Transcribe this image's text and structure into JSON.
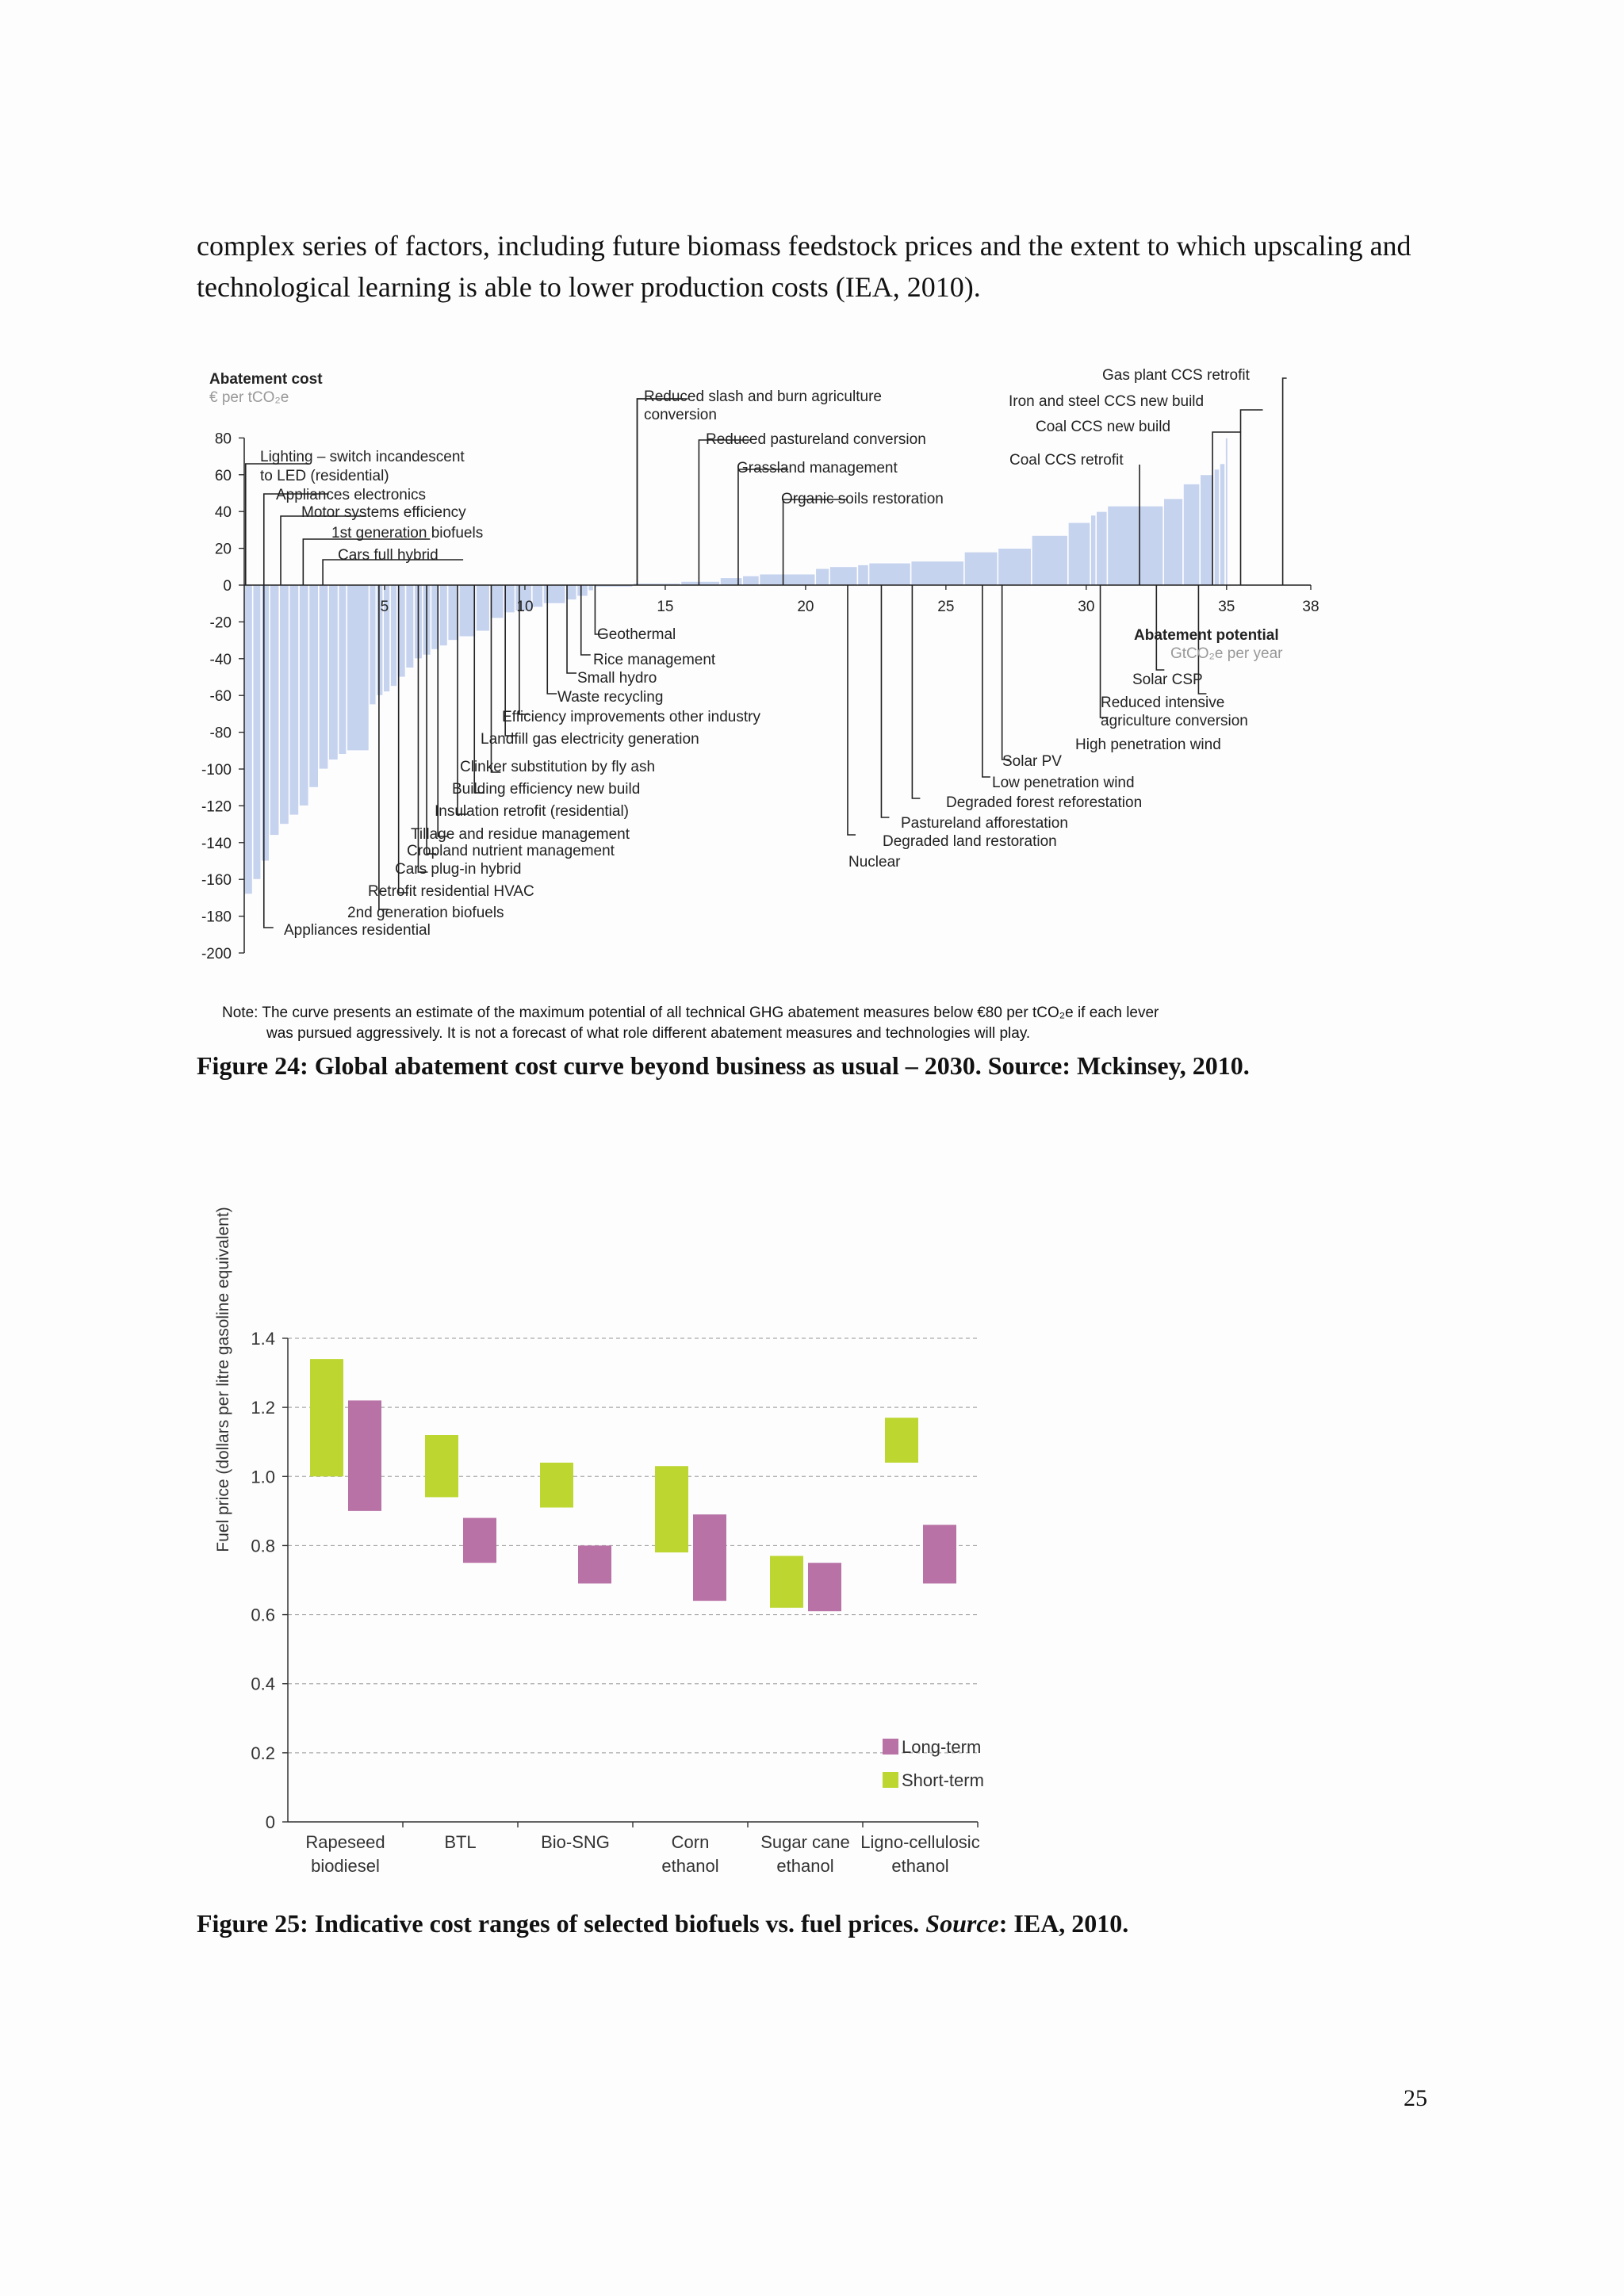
{
  "body_text": "complex series of factors, including future biomass feedstock prices and the extent to which upscaling and technological learning is able to lower production costs (IEA, 2010).",
  "figure24": {
    "caption": "Figure 24: Global abatement cost curve beyond business as usual – 2030. Source: Mckinsey, 2010.",
    "y_title": "Abatement cost",
    "y_unit": "€ per tCO₂e",
    "x_title": "Abatement potential",
    "x_unit": "GtCO₂e per year",
    "note_line1": "Note: The curve presents an estimate of the maximum potential of all technical GHG abatement measures below €80 per tCO₂e if each lever",
    "note_line2": "was pursued aggressively. It is not a forecast of what role different abatement measures and technologies will play.",
    "labels_top": [
      "Lighting – switch incandescent",
      "to LED (residential)",
      "Appliances electronics",
      "Motor systems efficiency",
      "1st generation biofuels",
      "Cars full hybrid",
      "Reduced slash and burn agriculture",
      "conversion",
      "Reduced pastureland conversion",
      "Grassland management",
      "Organic soils restoration",
      "Gas plant CCS retrofit",
      "Iron and steel CCS new build",
      "Coal CCS new build",
      "Coal CCS retrofit"
    ],
    "labels_bottom": [
      "Geothermal",
      "Rice management",
      "Small hydro",
      "Waste recycling",
      "Efficiency improvements other industry",
      "Landfill gas electricity generation",
      "Clinker substitution by fly ash",
      "Building efficiency new build",
      "Insulation retrofit (residential)",
      "Tillage and residue management",
      "Cropland nutrient management",
      "Cars plug-in hybrid",
      "Retrofit residential HVAC",
      "2nd generation biofuels",
      "Appliances residential",
      "Solar CSP",
      "Reduced intensive",
      "agriculture conversion",
      "High penetration wind",
      "Solar PV",
      "Low penetration wind",
      "Degraded forest reforestation",
      "Pastureland afforestation",
      "Degraded land restoration",
      "Nuclear"
    ],
    "chart_data": {
      "type": "bar",
      "xlim": [
        0,
        38
      ],
      "ylim": [
        -200,
        80
      ],
      "x_ticks": [
        5,
        10,
        15,
        20,
        25,
        30,
        35,
        38
      ],
      "y_ticks": [
        80,
        60,
        40,
        20,
        0,
        -20,
        -40,
        -60,
        -80,
        -100,
        -120,
        -140,
        -160,
        -180,
        -200
      ],
      "bar_color": "#c6d3ee",
      "segments": [
        {
          "w": 0.3,
          "v": -168
        },
        {
          "w": 0.3,
          "v": -160
        },
        {
          "w": 0.3,
          "v": -150
        },
        {
          "w": 0.35,
          "v": -136
        },
        {
          "w": 0.35,
          "v": -130
        },
        {
          "w": 0.35,
          "v": -125
        },
        {
          "w": 0.35,
          "v": -120
        },
        {
          "w": 0.35,
          "v": -110
        },
        {
          "w": 0.35,
          "v": -100
        },
        {
          "w": 0.35,
          "v": -95
        },
        {
          "w": 0.3,
          "v": -92
        },
        {
          "w": 0.8,
          "v": -90
        },
        {
          "w": 0.25,
          "v": -65
        },
        {
          "w": 0.25,
          "v": -60
        },
        {
          "w": 0.25,
          "v": -58
        },
        {
          "w": 0.25,
          "v": -55
        },
        {
          "w": 0.3,
          "v": -50
        },
        {
          "w": 0.3,
          "v": -45
        },
        {
          "w": 0.3,
          "v": -40
        },
        {
          "w": 0.3,
          "v": -38
        },
        {
          "w": 0.3,
          "v": -35
        },
        {
          "w": 0.3,
          "v": -33
        },
        {
          "w": 0.4,
          "v": -30
        },
        {
          "w": 0.6,
          "v": -28
        },
        {
          "w": 0.5,
          "v": -25
        },
        {
          "w": 0.5,
          "v": -18
        },
        {
          "w": 0.4,
          "v": -15
        },
        {
          "w": 0.6,
          "v": -14
        },
        {
          "w": 0.4,
          "v": -12
        },
        {
          "w": 0.8,
          "v": -10
        },
        {
          "w": 0.4,
          "v": -8
        },
        {
          "w": 0.4,
          "v": -6
        },
        {
          "w": 0.2,
          "v": -3
        },
        {
          "w": 1.4,
          "v": -1
        },
        {
          "w": 1.7,
          "v": 1
        },
        {
          "w": 1.4,
          "v": 2
        },
        {
          "w": 0.8,
          "v": 4
        },
        {
          "w": 0.6,
          "v": 5
        },
        {
          "w": 2.0,
          "v": 6
        },
        {
          "w": 0.5,
          "v": 9
        },
        {
          "w": 1.0,
          "v": 10
        },
        {
          "w": 0.4,
          "v": 11
        },
        {
          "w": 1.5,
          "v": 12
        },
        {
          "w": 1.9,
          "v": 13
        },
        {
          "w": 1.2,
          "v": 18
        },
        {
          "w": 1.2,
          "v": 20
        },
        {
          "w": 1.3,
          "v": 27
        },
        {
          "w": 0.8,
          "v": 34
        },
        {
          "w": 0.2,
          "v": 38
        },
        {
          "w": 0.4,
          "v": 40
        },
        {
          "w": 2.0,
          "v": 43
        },
        {
          "w": 0.7,
          "v": 47
        },
        {
          "w": 0.6,
          "v": 55
        },
        {
          "w": 0.5,
          "v": 60
        },
        {
          "w": 0.2,
          "v": 63
        },
        {
          "w": 0.2,
          "v": 66
        },
        {
          "w": 0.1,
          "v": 80
        }
      ]
    }
  },
  "figure25": {
    "caption_prefix": "Figure 25: Indicative cost ranges of selected biofuels vs. fuel prices. ",
    "caption_source": "Source",
    "caption_suffix": ": IEA, 2010.",
    "chart_data": {
      "type": "bar",
      "ylabel": "Fuel price (dollars per litre gasoline equivalent)",
      "ylim": [
        0,
        1.4
      ],
      "y_ticks": [
        "0",
        "0.2",
        "0.4",
        "0.6",
        "0.8",
        "1.0",
        "1.2",
        "1.4"
      ],
      "categories": [
        [
          "Rapeseed",
          "biodiesel"
        ],
        [
          "BTL",
          ""
        ],
        [
          "Bio-SNG",
          ""
        ],
        [
          "Corn",
          "ethanol"
        ],
        [
          "Sugar cane",
          "ethanol"
        ],
        [
          "Ligno-cellulosic",
          "ethanol"
        ]
      ],
      "legend": {
        "position": "bottom-right"
      },
      "series": [
        {
          "name": "Short-term",
          "color": "#bdd630",
          "ranges": [
            [
              1.0,
              1.34
            ],
            [
              0.94,
              1.12
            ],
            [
              0.91,
              1.04
            ],
            [
              0.78,
              1.03
            ],
            [
              0.62,
              0.77
            ],
            [
              1.04,
              1.17
            ]
          ]
        },
        {
          "name": "Long-term",
          "color": "#b872a6",
          "ranges": [
            [
              0.9,
              1.22
            ],
            [
              0.75,
              0.88
            ],
            [
              0.69,
              0.8
            ],
            [
              0.64,
              0.89
            ],
            [
              0.61,
              0.75
            ],
            [
              0.69,
              0.86
            ]
          ]
        }
      ]
    }
  },
  "page_number": "25"
}
